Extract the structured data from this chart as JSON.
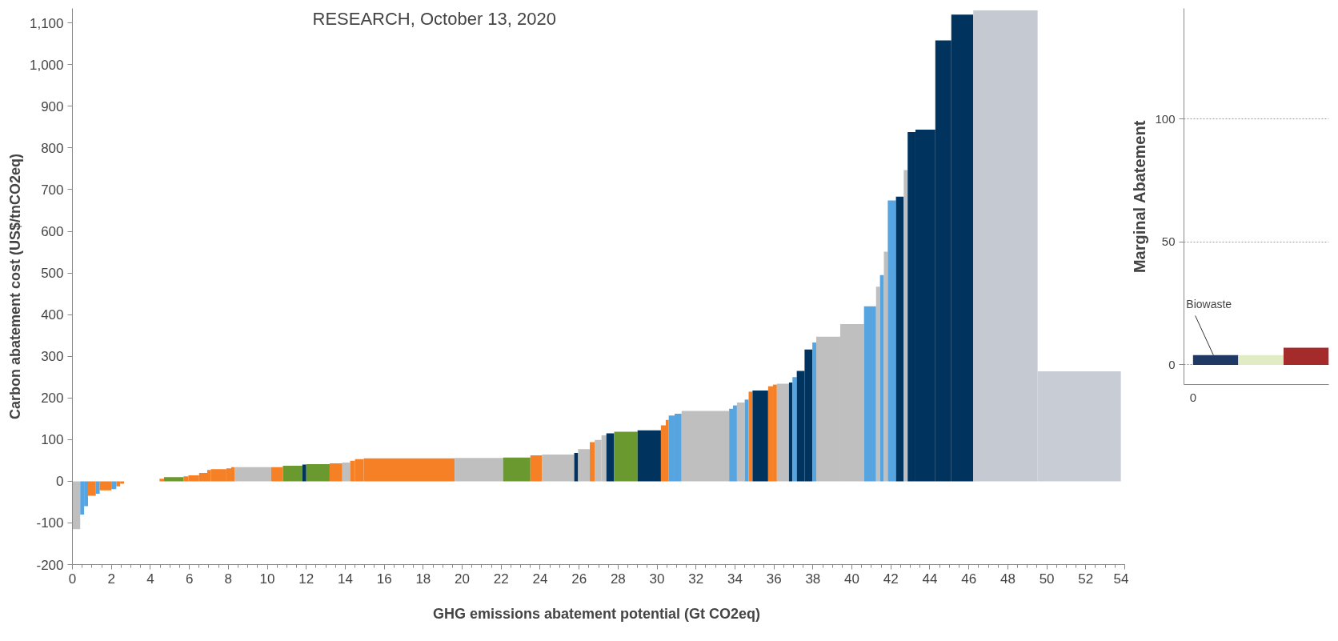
{
  "chart_data": [
    {
      "type": "histogram",
      "xlabel": "GHG emissions abatement potential  (Gt CO2eq)",
      "ylabel": "Carbon abatement cost (US$/tnCO2eq)",
      "annotations": [
        "RESEARCH, October 13, 2020"
      ],
      "bins": [
        0,
        0.4,
        0.6,
        0.8,
        1.2,
        1.4,
        2.0,
        2.25,
        2.45,
        2.65,
        4.47,
        4.7,
        5.7,
        5.95,
        6.5,
        6.92,
        7.1,
        7.9,
        8.15,
        8.33,
        10.2,
        10.8,
        11.8,
        12.0,
        13.2,
        13.85,
        14.25,
        14.5,
        14.95,
        19.62,
        22.1,
        23.5,
        24.1,
        25.75,
        25.95,
        26.55,
        26.8,
        27.15,
        27.4,
        27.8,
        29.0,
        30.2,
        30.45,
        30.6,
        30.9,
        31.26,
        33.7,
        33.9,
        34.1,
        34.5,
        34.7,
        34.9,
        35.7,
        35.95,
        36.15,
        36.77,
        36.95,
        37.17,
        37.57,
        37.97,
        38.17,
        39.4,
        40.62,
        41.24,
        41.44,
        41.64,
        41.84,
        42.26,
        42.66,
        42.86,
        43.26,
        44.28,
        45.1,
        46.23,
        49.53,
        53.8
      ],
      "values": [
        -115,
        -80,
        -60,
        -35,
        -30,
        -22,
        -19,
        -12,
        -6,
        null,
        6,
        10,
        12,
        14,
        20,
        27,
        29,
        31,
        34,
        34,
        34,
        37,
        40,
        41,
        43,
        45,
        49,
        53,
        55,
        56,
        57,
        62,
        64,
        68,
        77,
        94,
        99,
        110,
        115,
        119,
        122,
        134,
        147,
        158,
        162,
        169,
        174,
        182,
        189,
        196,
        215,
        218,
        228,
        232,
        234,
        237,
        250,
        265,
        316,
        333,
        347,
        377,
        420,
        467,
        495,
        551,
        674,
        683,
        747,
        838,
        844,
        1058,
        1120,
        1130,
        264
      ],
      "colors": [
        "#bfbfbf",
        "#56a4e0",
        "#56a4e0",
        "#f58025",
        "#56a4e0",
        "#f58025",
        "#56a4e0",
        "#f58025",
        "#f58025",
        "#bfbfbf",
        "#f58025",
        "#6a9a2f",
        "#f58025",
        "#f58025",
        "#f58025",
        "#f58025",
        "#f58025",
        "#f58025",
        "#f58025",
        "#bfbfbf",
        "#f58025",
        "#6a9a2f",
        "#00345f",
        "#6a9a2f",
        "#f58025",
        "#bfbfbf",
        "#f58025",
        "#f58025",
        "#f58025",
        "#bfbfbf",
        "#6a9a2f",
        "#f58025",
        "#bfbfbf",
        "#00345f",
        "#bfbfbf",
        "#f58025",
        "#bfbfbf",
        "#bfbfbf",
        "#00345f",
        "#6a9a2f",
        "#00345f",
        "#f58025",
        "#f58025",
        "#56a4e0",
        "#56a4e0",
        "#bfbfbf",
        "#56a4e0",
        "#56a4e0",
        "#bfbfbf",
        "#56a4e0",
        "#f58025",
        "#00345f",
        "#f58025",
        "#f58025",
        "#bfbfbf",
        "#00345f",
        "#56a4e0",
        "#00345f",
        "#00345f",
        "#56a4e0",
        "#bfbfbf",
        "#bfbfbf",
        "#56a4e0",
        "#bfbfbf",
        "#56a4e0",
        "#bfbfbf",
        "#56a4e0",
        "#00345f",
        "#bfbfbf",
        "#00345f",
        "#00345f",
        "#00345f",
        "#00345f",
        "#c4c9d2",
        "#c8ccd4"
      ],
      "xlim": [
        0,
        54
      ],
      "xticks": [
        0,
        2,
        4,
        6,
        8,
        10,
        12,
        14,
        16,
        18,
        20,
        22,
        24,
        26,
        28,
        30,
        32,
        34,
        36,
        38,
        40,
        42,
        44,
        46,
        48,
        50,
        52,
        54
      ],
      "ylim": [
        -200,
        1135
      ],
      "yticks": [
        -200,
        -100,
        0,
        100,
        200,
        300,
        400,
        500,
        600,
        700,
        800,
        900,
        {
          "value": 1000,
          "label": "1,000"
        },
        {
          "value": 1100,
          "label": "1,100"
        }
      ]
    },
    {
      "type": "bar",
      "ylabel": "Marginal Abatement",
      "annotations": [
        "Biowaste",
        "0"
      ],
      "categories": [
        null,
        null,
        null
      ],
      "values": [
        4,
        4,
        7
      ],
      "colors": [
        "#1f3864",
        "#e2ecc4",
        "#a52a2a"
      ],
      "ylim": [
        -8,
        145
      ],
      "yticks": [
        0,
        50,
        100
      ],
      "grid": "y",
      "tick_labels": "y"
    }
  ]
}
